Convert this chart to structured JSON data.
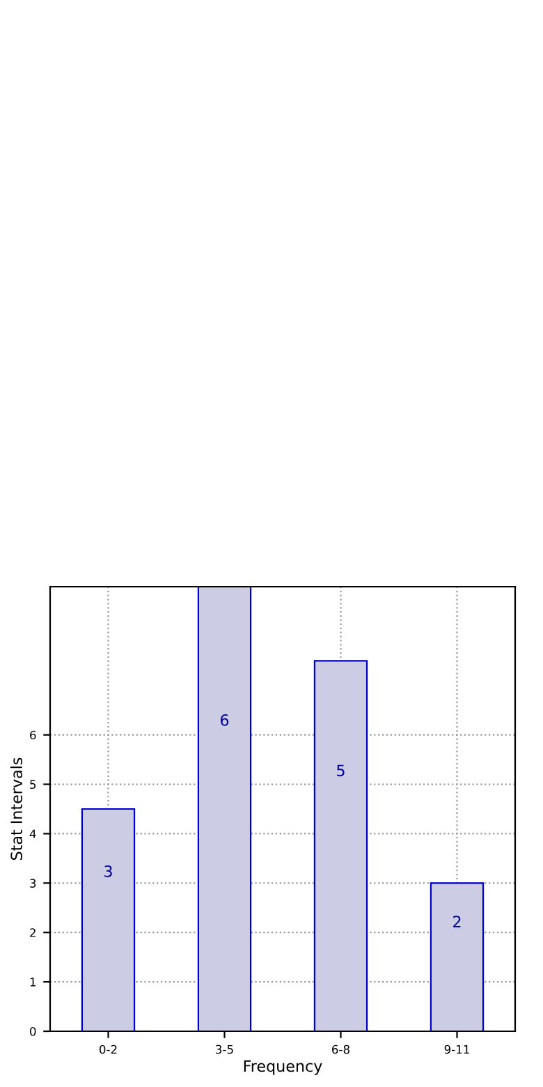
{
  "chart_data": {
    "type": "bar",
    "xlabel": "Frequency",
    "ylabel": "Stat Intervals",
    "categories": [
      "0-2",
      "3-5",
      "6-8",
      "9-11"
    ],
    "values": [
      4.5,
      9,
      7.5,
      3
    ],
    "annotations": [
      "3",
      "6",
      "5",
      "2"
    ],
    "color": "#ccccE5",
    "ylim": [
      0,
      9
    ],
    "yticks": [
      0,
      1,
      2,
      3,
      4,
      5,
      6
    ],
    "grid": true
  }
}
